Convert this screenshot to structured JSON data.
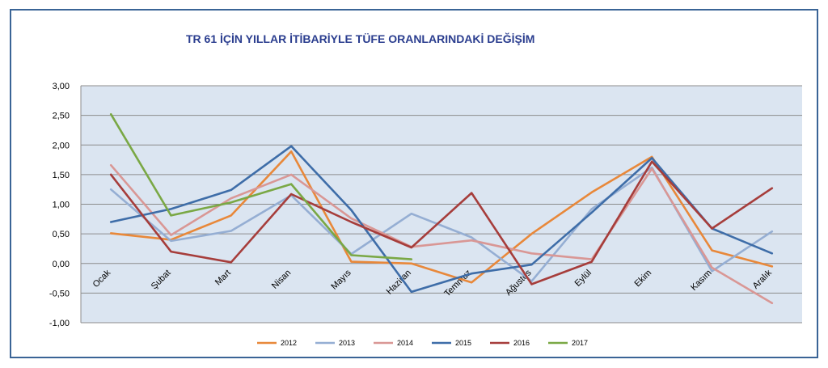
{
  "chart_data": {
    "type": "line",
    "title": "TR 61 İÇİN YILLAR İTİBARİYLE TÜFE ORANLARINDAKİ DEĞİŞİM",
    "xlabel": "",
    "ylabel": "",
    "categories": [
      "Ocak",
      "Şubat",
      "Mart",
      "Nisan",
      "Mayıs",
      "Haziran",
      "Temmuz",
      "Ağustos",
      "Eylül",
      "Ekim",
      "Kasım",
      "Aralık"
    ],
    "ylim": [
      -1.0,
      3.0
    ],
    "yticks": [
      "-1,00",
      "-0,50",
      "0,00",
      "0,50",
      "1,00",
      "1,50",
      "2,00",
      "2,50",
      "3,00"
    ],
    "grid": true,
    "plot_background": "#dbe5f1",
    "legend_position": "bottom",
    "series": [
      {
        "name": "2012",
        "color": "#e8883a",
        "values": [
          0.51,
          0.4,
          0.81,
          1.89,
          0.03,
          0.0,
          -0.32,
          0.5,
          1.2,
          1.8,
          0.22,
          -0.05
        ]
      },
      {
        "name": "2013",
        "color": "#95aed3",
        "values": [
          1.25,
          0.38,
          0.55,
          1.15,
          0.16,
          0.84,
          0.44,
          -0.3,
          0.92,
          1.62,
          -0.13,
          0.54
        ]
      },
      {
        "name": "2014",
        "color": "#d99795",
        "values": [
          1.66,
          0.48,
          1.1,
          1.5,
          0.76,
          0.28,
          0.39,
          0.17,
          0.07,
          1.6,
          -0.07,
          -0.67
        ]
      },
      {
        "name": "2015",
        "color": "#3e6da8",
        "values": [
          0.7,
          0.92,
          1.24,
          1.98,
          0.9,
          -0.48,
          -0.17,
          -0.02,
          0.86,
          1.78,
          0.59,
          0.17
        ]
      },
      {
        "name": "2016",
        "color": "#a63d3b",
        "values": [
          1.5,
          0.2,
          0.02,
          1.17,
          0.7,
          0.27,
          1.19,
          -0.35,
          0.03,
          1.72,
          0.59,
          1.27
        ]
      },
      {
        "name": "2017",
        "color": "#7aa845",
        "values": [
          2.52,
          0.81,
          1.03,
          1.34,
          0.14,
          0.07,
          null,
          null,
          null,
          null,
          null,
          null
        ]
      }
    ]
  }
}
